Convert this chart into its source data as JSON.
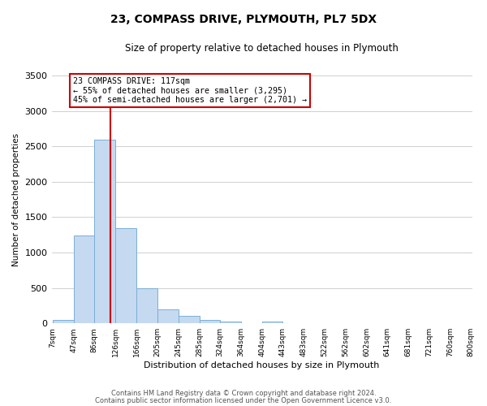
{
  "title": "23, COMPASS DRIVE, PLYMOUTH, PL7 5DX",
  "subtitle": "Size of property relative to detached houses in Plymouth",
  "xlabel": "Distribution of detached houses by size in Plymouth",
  "ylabel": "Number of detached properties",
  "bar_labels": [
    "7sqm",
    "47sqm",
    "86sqm",
    "126sqm",
    "166sqm",
    "205sqm",
    "245sqm",
    "285sqm",
    "324sqm",
    "364sqm",
    "404sqm",
    "443sqm",
    "483sqm",
    "522sqm",
    "562sqm",
    "602sqm",
    "641sqm",
    "681sqm",
    "721sqm",
    "760sqm",
    "800sqm"
  ],
  "bar_heights": [
    50,
    1240,
    2600,
    1350,
    500,
    200,
    110,
    50,
    30,
    0,
    30,
    0,
    0,
    0,
    0,
    0,
    0,
    0,
    0,
    0,
    0
  ],
  "bar_color": "#c5d9f1",
  "bar_edge_color": "#7bafd4",
  "property_line_color": "#cc0000",
  "annotation_title": "23 COMPASS DRIVE: 117sqm",
  "annotation_line1": "← 55% of detached houses are smaller (3,295)",
  "annotation_line2": "45% of semi-detached houses are larger (2,701) →",
  "annotation_box_color": "#ffffff",
  "annotation_box_edge_color": "#cc0000",
  "ylim": [
    0,
    3500
  ],
  "yticks": [
    0,
    500,
    1000,
    1500,
    2000,
    2500,
    3000,
    3500
  ],
  "grid_color": "#d0d0d0",
  "background_color": "#ffffff",
  "footer1": "Contains HM Land Registry data © Crown copyright and database right 2024.",
  "footer2": "Contains public sector information licensed under the Open Government Licence v3.0."
}
